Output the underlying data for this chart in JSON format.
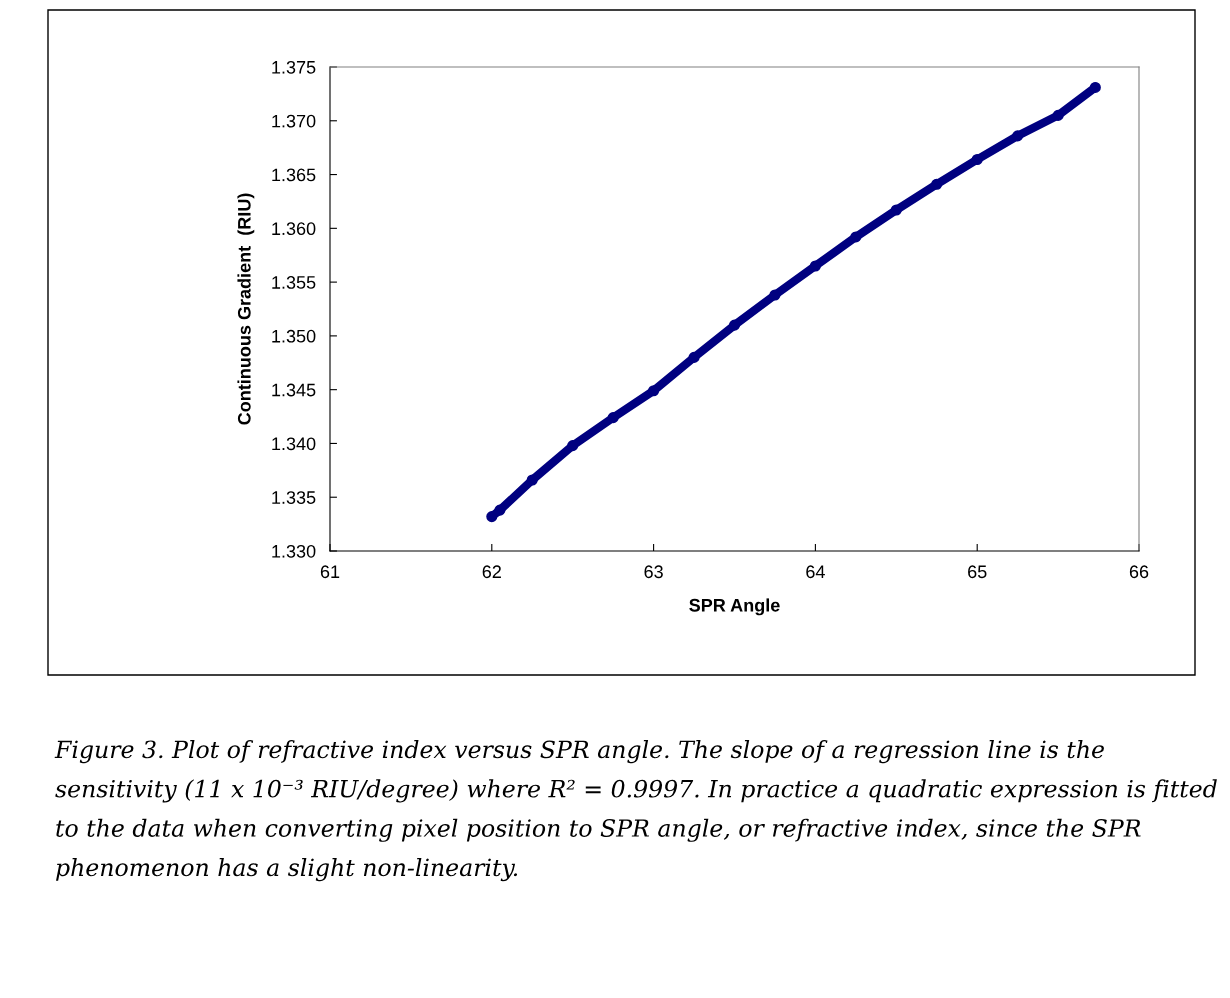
{
  "chart_data": {
    "type": "line",
    "xlabel": "SPR Angle",
    "ylabel": "Continuous Gradient  (RIU)",
    "x": [
      62.0,
      62.05,
      62.25,
      62.5,
      62.75,
      63.0,
      63.25,
      63.5,
      63.75,
      64.0,
      64.25,
      64.5,
      64.75,
      65.0,
      65.25,
      65.5,
      65.73
    ],
    "series": [
      {
        "color": "#000080",
        "values": [
          1.3332,
          1.3338,
          1.3366,
          1.3398,
          1.3424,
          1.3449,
          1.348,
          1.351,
          1.3538,
          1.3565,
          1.3592,
          1.3617,
          1.3641,
          1.3664,
          1.3686,
          1.3705,
          1.3731
        ]
      }
    ],
    "xlim": [
      61,
      66
    ],
    "xticks": [
      61,
      62,
      63,
      64,
      65,
      66
    ],
    "ylim": [
      1.33,
      1.375
    ],
    "yticks": [
      {
        "value": 1.33,
        "label": "1.330"
      },
      {
        "value": 1.335,
        "label": "1.335"
      },
      {
        "value": 1.34,
        "label": "1.340"
      },
      {
        "value": 1.345,
        "label": "1.345"
      },
      {
        "value": 1.35,
        "label": "1.350"
      },
      {
        "value": 1.355,
        "label": "1.355"
      },
      {
        "value": 1.36,
        "label": "1.360"
      },
      {
        "value": 1.365,
        "label": "1.365"
      },
      {
        "value": 1.37,
        "label": "1.370"
      },
      {
        "value": 1.375,
        "label": "1.375"
      }
    ],
    "marker": "circle",
    "line_style": "solid",
    "grid": false,
    "legend": false,
    "annotations": [
      "Figure 3. Plot of refractive index versus SPR angle. The slope of a regression line is the sensitivity (11 x 10⁻³ RIU/degree) where R² = 0.9997. In practice a quadratic expression is fitted to the data when converting pixel position to SPR angle, or refractive index, since the SPR phenomenon has a slight non-linearity."
    ]
  }
}
